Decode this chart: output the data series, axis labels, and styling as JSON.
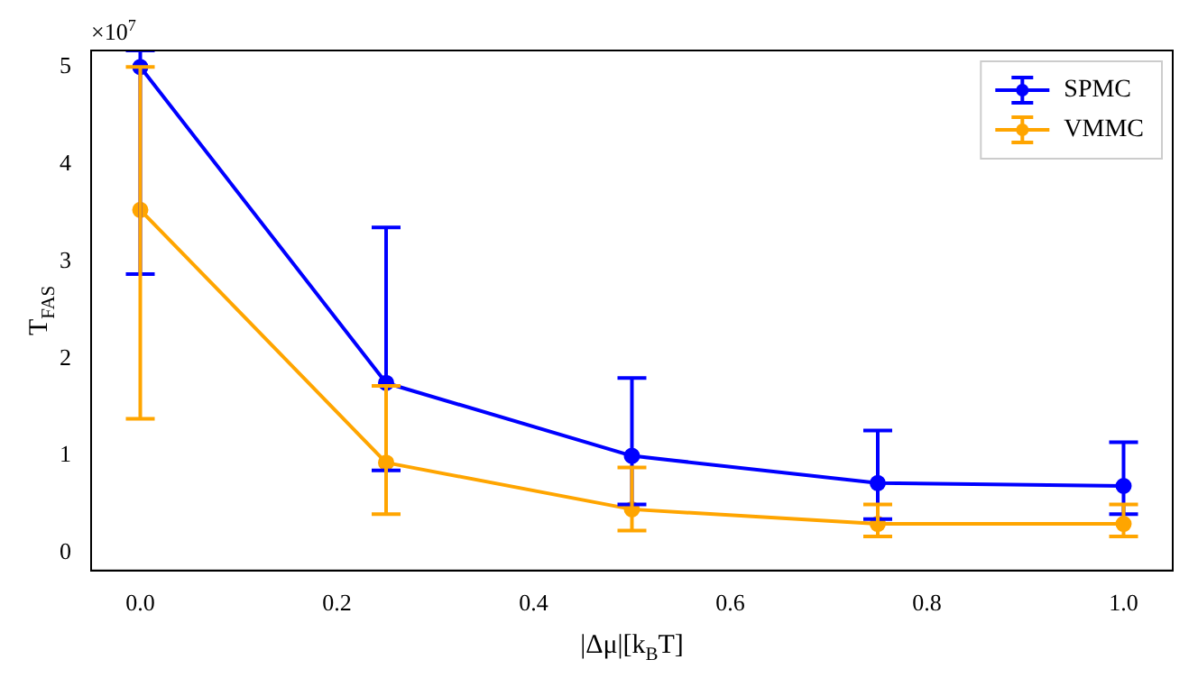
{
  "chart_data": {
    "type": "line",
    "xlabel": "|Δμ|[k$_{B}$T]",
    "ylabel": "T$_{FAS}$",
    "annotations": [
      "×10$^{7}$"
    ],
    "x": [
      0,
      0.25,
      0.5,
      0.75,
      1.0
    ],
    "series": [
      {
        "name": "SPMC",
        "color": "#0000ff",
        "values": [
          5.0,
          1.75,
          1.0,
          0.72,
          0.69
        ],
        "errors": [
          [
            2.87,
            5.17
          ],
          [
            0.85,
            3.35
          ],
          [
            0.5,
            1.8
          ],
          [
            0.35,
            1.26
          ],
          [
            0.4,
            1.14
          ]
        ]
      },
      {
        "name": "VMMC",
        "color": "#ffa500",
        "values": [
          3.53,
          0.93,
          0.45,
          0.3,
          0.3
        ],
        "errors": [
          [
            1.38,
            5.0
          ],
          [
            0.4,
            1.72
          ],
          [
            0.23,
            0.88
          ],
          [
            0.17,
            0.5
          ],
          [
            0.17,
            0.5
          ]
        ]
      }
    ],
    "xlim": [
      -0.05,
      1.05
    ],
    "xticks": [
      {
        "value": 0,
        "label": "0.0"
      },
      0.2,
      0.4,
      0.6,
      0.8,
      {
        "value": 1,
        "label": "1.0"
      }
    ],
    "ylim": [
      -0.18,
      5.17
    ],
    "yticks": [
      0,
      1,
      2,
      3,
      4,
      5
    ],
    "legend": "top right",
    "marker": "circle",
    "line_style": "solid",
    "grid": false
  }
}
